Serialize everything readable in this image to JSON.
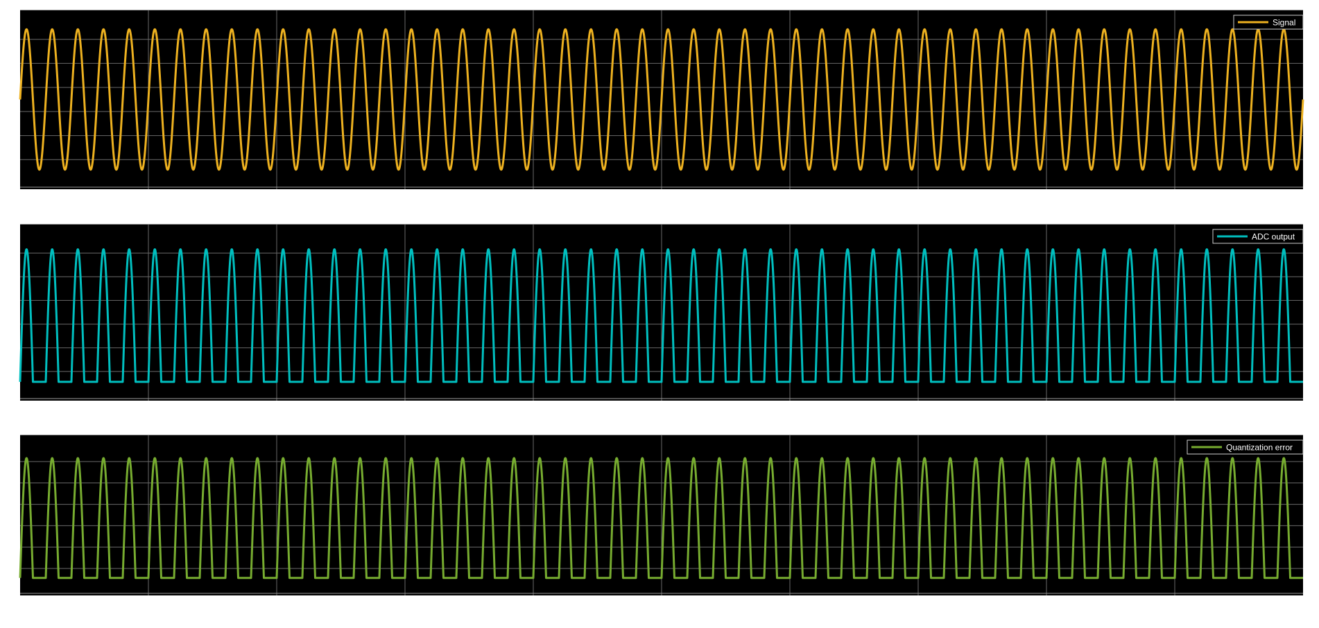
{
  "chart_data": [
    {
      "type": "line",
      "title": "",
      "xlabel": "",
      "ylabel": "",
      "background": "#000000",
      "grid": true,
      "legend": "top-right",
      "series": [
        {
          "name": "Signal",
          "color": "#EDB120",
          "waveform": "sine",
          "cycles": 50,
          "phase": 0,
          "range": [
            -1,
            1
          ]
        }
      ],
      "ylim": [
        -1.2,
        1.2
      ]
    },
    {
      "type": "line",
      "title": "",
      "xlabel": "",
      "ylabel": "",
      "background": "#000000",
      "grid": true,
      "legend": "top-right",
      "series": [
        {
          "name": "ADC output",
          "color": "#00BFBF",
          "waveform": "clipped-sine",
          "cycles": 50,
          "phase": 0,
          "floor": 0,
          "peak": 1
        }
      ],
      "ylim": [
        -0.1,
        1.15
      ]
    },
    {
      "type": "line",
      "title": "",
      "xlabel": "",
      "ylabel": "",
      "background": "#000000",
      "grid": true,
      "legend": "top-right",
      "series": [
        {
          "name": "Quantization error",
          "color": "#77AC30",
          "waveform": "clipped-sine",
          "cycles": 50,
          "phase": 0,
          "floor": 0,
          "peak": 1
        }
      ],
      "ylim": [
        -0.1,
        1.15
      ]
    }
  ]
}
